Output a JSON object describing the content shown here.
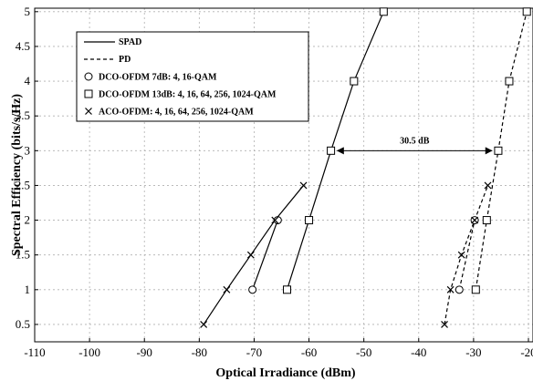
{
  "chart_data": {
    "type": "line",
    "xlabel": "Optical Irradiance (dBm)",
    "ylabel": "Spectral Efficiency (bits/s/Hz)",
    "xlim": [
      -110,
      -20
    ],
    "ylim": [
      0.25,
      5.05
    ],
    "xticks": [
      -110,
      -100,
      -90,
      -80,
      -70,
      -60,
      -50,
      -40,
      -30,
      -20
    ],
    "yticks": [
      0.5,
      1,
      1.5,
      2,
      2.5,
      3,
      3.5,
      4,
      4.5,
      5
    ],
    "grid": true,
    "legend_placement": "top-left",
    "legend": [
      {
        "label": "SPAD",
        "kind": "line",
        "dash": "solid"
      },
      {
        "label": "PD",
        "kind": "line",
        "dash": "dashed"
      },
      {
        "label": "DCO-OFDM 7dB: 4, 16-QAM",
        "kind": "marker",
        "marker": "circle"
      },
      {
        "label": "DCO-OFDM 13dB: 4, 16, 64, 256, 1024-QAM",
        "kind": "marker",
        "marker": "square"
      },
      {
        "label": "ACO-OFDM: 4, 16, 64, 256, 1024-QAM",
        "kind": "marker",
        "marker": "x"
      }
    ],
    "series": [
      {
        "detector": "SPAD",
        "scheme": "DCO-OFDM 7dB",
        "marker": "circle",
        "dash": "solid",
        "x": [
          -70.3,
          -65.7
        ],
        "y": [
          1,
          2
        ]
      },
      {
        "detector": "SPAD",
        "scheme": "DCO-OFDM 13dB",
        "marker": "square",
        "dash": "solid",
        "x": [
          -64.0,
          -60.0,
          -56.0,
          -51.8,
          -46.4
        ],
        "y": [
          1,
          2,
          3,
          4,
          5
        ]
      },
      {
        "detector": "SPAD",
        "scheme": "ACO-OFDM",
        "marker": "x",
        "dash": "solid",
        "x": [
          -79.2,
          -75.0,
          -70.6,
          -66.2,
          -61.0
        ],
        "y": [
          0.5,
          1,
          1.5,
          2,
          2.5
        ]
      },
      {
        "detector": "PD",
        "scheme": "DCO-OFDM 7dB",
        "marker": "circle",
        "dash": "dashed",
        "x": [
          -32.6,
          -29.8
        ],
        "y": [
          1,
          2
        ]
      },
      {
        "detector": "PD",
        "scheme": "DCO-OFDM 13dB",
        "marker": "square",
        "dash": "dashed",
        "x": [
          -29.6,
          -27.6,
          -25.5,
          -23.5,
          -20.3
        ],
        "y": [
          1,
          2,
          3,
          4,
          5
        ]
      },
      {
        "detector": "PD",
        "scheme": "ACO-OFDM",
        "marker": "x",
        "dash": "dashed",
        "x": [
          -35.3,
          -34.2,
          -32.2,
          -29.8,
          -27.4
        ],
        "y": [
          0.5,
          1,
          1.5,
          2,
          2.5
        ]
      }
    ],
    "annotation": {
      "text": "30.5 dB",
      "x_from": -56.0,
      "x_to": -25.5,
      "y": 3
    }
  }
}
